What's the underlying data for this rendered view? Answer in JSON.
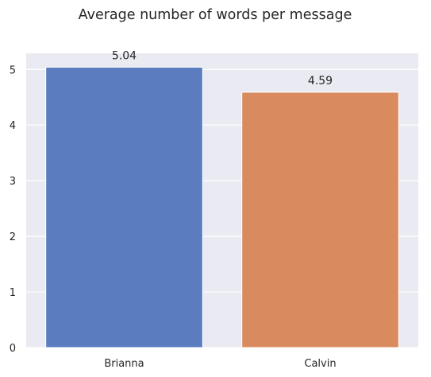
{
  "chart_data": {
    "type": "bar",
    "title": "Average number of words per message",
    "categories": [
      "Brianna",
      "Calvin"
    ],
    "values": [
      5.04,
      4.59
    ],
    "data_labels": [
      "5.04",
      "4.59"
    ],
    "colors": [
      "#5b7cbf",
      "#d98b5f"
    ],
    "xlabel": "",
    "ylabel": "",
    "ylim": [
      0,
      5.29
    ],
    "yticks": [
      0,
      1,
      2,
      3,
      4,
      5
    ],
    "grid": true,
    "background": "#eaeaf2",
    "grid_color": "#ffffff"
  }
}
